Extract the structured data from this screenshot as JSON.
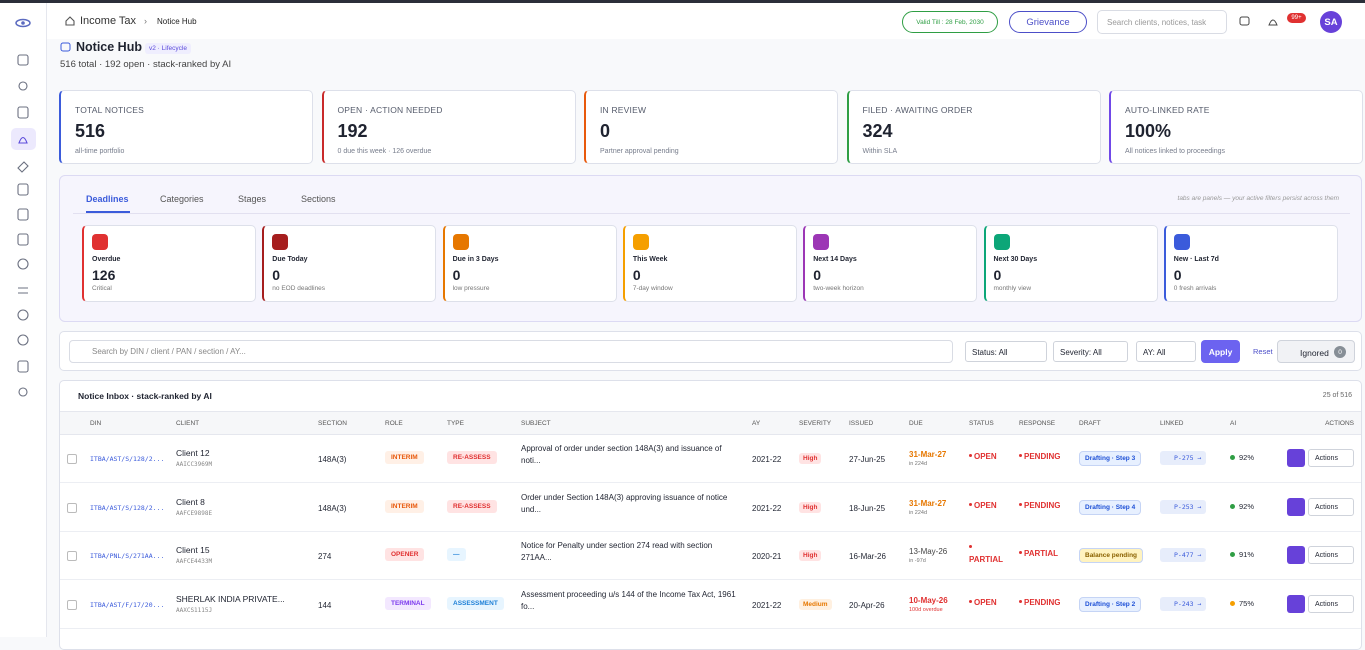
{
  "topbar": {
    "breadcrumb": [
      "Income Tax",
      "Notice Hub"
    ],
    "validity": "Valid Till : 28 Feb, 2030",
    "grievance": "Grievance",
    "search_placeholder": "Search clients, notices, task",
    "notification_badge": "99+",
    "avatar": "SA"
  },
  "header": {
    "title": "Notice Hub",
    "tag": "v2 · Lifecycle",
    "subtitle": "516 total · 192 open · stack-ranked by AI"
  },
  "kpis": [
    {
      "label": "TOTAL NOTICES",
      "value": "516",
      "note": "all-time portfolio"
    },
    {
      "label": "OPEN · ACTION NEEDED",
      "value": "192",
      "note": "0 due this week · 126 overdue"
    },
    {
      "label": "IN REVIEW",
      "value": "0",
      "note": "Partner approval pending"
    },
    {
      "label": "FILED · AWAITING ORDER",
      "value": "324",
      "note": "Within SLA"
    },
    {
      "label": "AUTO-LINKED RATE",
      "value": "100%",
      "note": "All notices linked to proceedings"
    }
  ],
  "tabs": {
    "items": [
      "Deadlines",
      "Categories",
      "Stages",
      "Sections"
    ],
    "note": "tabs are panels — your active filters persist across them"
  },
  "deadlines": [
    {
      "label": "Overdue",
      "value": "126",
      "note": "Critical"
    },
    {
      "label": "Due Today",
      "value": "0",
      "note": "no EOD deadlines"
    },
    {
      "label": "Due in 3 Days",
      "value": "0",
      "note": "low pressure"
    },
    {
      "label": "This Week",
      "value": "0",
      "note": "7-day window"
    },
    {
      "label": "Next 14 Days",
      "value": "0",
      "note": "two-week horizon"
    },
    {
      "label": "Next 30 Days",
      "value": "0",
      "note": "monthly view"
    },
    {
      "label": "New · Last 7d",
      "value": "0",
      "note": "0 fresh arrivals"
    }
  ],
  "filters": {
    "search_placeholder": "Search by DIN / client / PAN / section / AY...",
    "status": "Status: All",
    "severity": "Severity: All",
    "ay": "AY: All",
    "apply": "Apply",
    "reset": "Reset",
    "ignored": "Ignored",
    "ignored_count": "0"
  },
  "table": {
    "title": "Notice Inbox · stack-ranked by AI",
    "count": "25 of 516",
    "columns": [
      "DIN",
      "CLIENT",
      "SECTION",
      "ROLE",
      "TYPE",
      "SUBJECT",
      "AY",
      "SEVERITY",
      "ISSUED",
      "DUE",
      "STATUS",
      "RESPONSE",
      "DRAFT",
      "LINKED",
      "AI",
      "ACTIONS"
    ],
    "rows": [
      {
        "din": "ITBA/AST/S/128/2...",
        "client": "Client 12",
        "pan": "AAICC3969M",
        "section": "148A(3)",
        "role": "INTERIM",
        "type": "RE-ASSESS",
        "subject": "Approval of order under section 148A(3) and issuance of noti...",
        "ay": "2021-22",
        "severity": "High",
        "issued": "27-Jun-25",
        "due": "31-Mar-27",
        "due_note": "in 224d",
        "status": "OPEN",
        "response": "PENDING",
        "draft": "Drafting · Step 3",
        "linked": "P-275 →",
        "ai": "92%",
        "action": "Actions"
      },
      {
        "din": "ITBA/AST/S/128/2...",
        "client": "Client 8",
        "pan": "AAFCE9898E",
        "section": "148A(3)",
        "role": "INTERIM",
        "type": "RE-ASSESS",
        "subject": "Order under Section 148A(3) approving issuance of notice und...",
        "ay": "2021-22",
        "severity": "High",
        "issued": "18-Jun-25",
        "due": "31-Mar-27",
        "due_note": "in 224d",
        "status": "OPEN",
        "response": "PENDING",
        "draft": "Drafting · Step 4",
        "linked": "P-253 →",
        "ai": "92%",
        "action": "Actions"
      },
      {
        "din": "ITBA/PNL/S/271AA...",
        "client": "Client 15",
        "pan": "AAFCE4433M",
        "section": "274",
        "role": "OPENER",
        "type": "—",
        "subject": "Notice for Penalty under section 274 read with section 271AA...",
        "ay": "2020-21",
        "severity": "High",
        "issued": "16-Mar-26",
        "due": "13-May-26",
        "due_note": "in -97d",
        "status": "PARTIAL",
        "response": "PARTIAL",
        "draft": "Balance pending",
        "linked": "P-477 →",
        "ai": "91%",
        "action": "Actions"
      },
      {
        "din": "ITBA/AST/F/17/20...",
        "client": "SHERLAK INDIA PRIVATE...",
        "pan": "AAXCS1115J",
        "section": "144",
        "role": "TERMINAL",
        "type": "ASSESSMENT",
        "subject": "Assessment proceeding u/s 144 of the Income Tax Act, 1961 fo...",
        "ay": "2021-22",
        "severity": "Medium",
        "issued": "20-Apr-26",
        "due": "10-May-26",
        "due_note": "100d overdue",
        "status": "OPEN",
        "response": "PENDING",
        "draft": "Drafting · Step 2",
        "linked": "P-243 →",
        "ai": "75%",
        "action": "Actions"
      }
    ]
  }
}
